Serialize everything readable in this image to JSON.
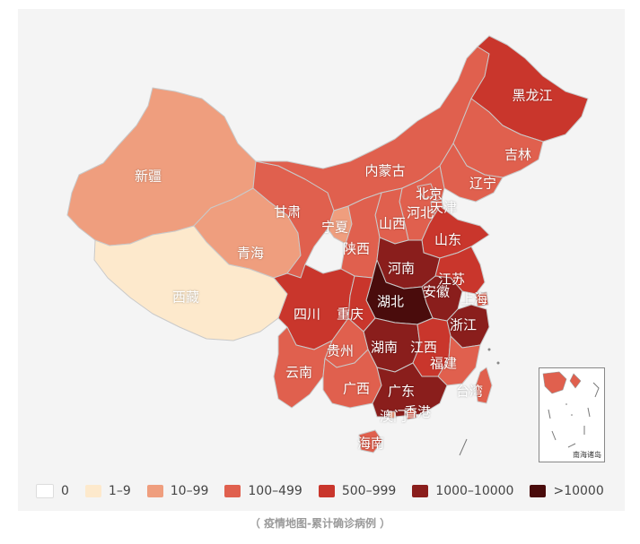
{
  "legend": [
    {
      "label": "0",
      "color": "#ffffff"
    },
    {
      "label": "1–9",
      "color": "#fde9cc"
    },
    {
      "label": "10–99",
      "color": "#ef9e7e"
    },
    {
      "label": "100–499",
      "color": "#e0604e"
    },
    {
      "label": "500–999",
      "color": "#c9362c"
    },
    {
      "label": "1000–10000",
      "color": "#8a1e1c"
    },
    {
      "label": ">10000",
      "color": "#4a0c0c"
    }
  ],
  "provinces": [
    {
      "name": "新疆",
      "color": "#ef9e7e",
      "text": "dark"
    },
    {
      "name": "西藏",
      "color": "#fde9cc",
      "text": "dark"
    },
    {
      "name": "青海",
      "color": "#ef9e7e",
      "text": "dark"
    },
    {
      "name": "甘肃",
      "color": "#e0604e",
      "text": "dark"
    },
    {
      "name": "内蒙古",
      "color": "#e0604e",
      "text": "dark"
    },
    {
      "name": "黑龙江",
      "color": "#c9362c",
      "text": "dark"
    },
    {
      "name": "吉林",
      "color": "#e0604e",
      "text": "dark"
    },
    {
      "name": "辽宁",
      "color": "#e0604e",
      "text": "dark"
    },
    {
      "name": "北京",
      "color": "#e0604e",
      "text": "dark"
    },
    {
      "name": "天津",
      "color": "#e0604e",
      "text": "dark"
    },
    {
      "name": "河北",
      "color": "#e0604e",
      "text": "dark"
    },
    {
      "name": "山西",
      "color": "#e0604e",
      "text": "dark"
    },
    {
      "name": "宁夏",
      "color": "#ef9e7e",
      "text": "dark"
    },
    {
      "name": "陕西",
      "color": "#e0604e",
      "text": "dark"
    },
    {
      "name": "山东",
      "color": "#c9362c",
      "text": "dark"
    },
    {
      "name": "河南",
      "color": "#8a1e1c",
      "text": "dark"
    },
    {
      "name": "江苏",
      "color": "#c9362c",
      "text": "dark"
    },
    {
      "name": "安徽",
      "color": "#8a1e1c",
      "text": "dark"
    },
    {
      "name": "上海",
      "color": "#e0604e",
      "text": "dark"
    },
    {
      "name": "湖北",
      "color": "#4a0c0c",
      "text": "dark"
    },
    {
      "name": "四川",
      "color": "#c9362c",
      "text": "dark"
    },
    {
      "name": "重庆",
      "color": "#c9362c",
      "text": "dark"
    },
    {
      "name": "浙江",
      "color": "#8a1e1c",
      "text": "dark"
    },
    {
      "name": "湖南",
      "color": "#8a1e1c",
      "text": "dark"
    },
    {
      "name": "江西",
      "color": "#c9362c",
      "text": "dark"
    },
    {
      "name": "贵州",
      "color": "#e0604e",
      "text": "dark"
    },
    {
      "name": "福建",
      "color": "#e0604e",
      "text": "dark"
    },
    {
      "name": "云南",
      "color": "#e0604e",
      "text": "dark"
    },
    {
      "name": "广西",
      "color": "#e0604e",
      "text": "dark"
    },
    {
      "name": "广东",
      "color": "#8a1e1c",
      "text": "dark"
    },
    {
      "name": "台湾",
      "color": "#e0604e",
      "text": "dark"
    },
    {
      "name": "香港",
      "color": "#e0604e",
      "text": "dark"
    },
    {
      "name": "澳门",
      "color": "#ef9e7e",
      "text": "dark"
    },
    {
      "name": "海南",
      "color": "#e0604e",
      "text": "dark"
    }
  ],
  "inset_label": "南海诸岛",
  "caption": "（ 疫情地图-累计确诊病例 ）"
}
